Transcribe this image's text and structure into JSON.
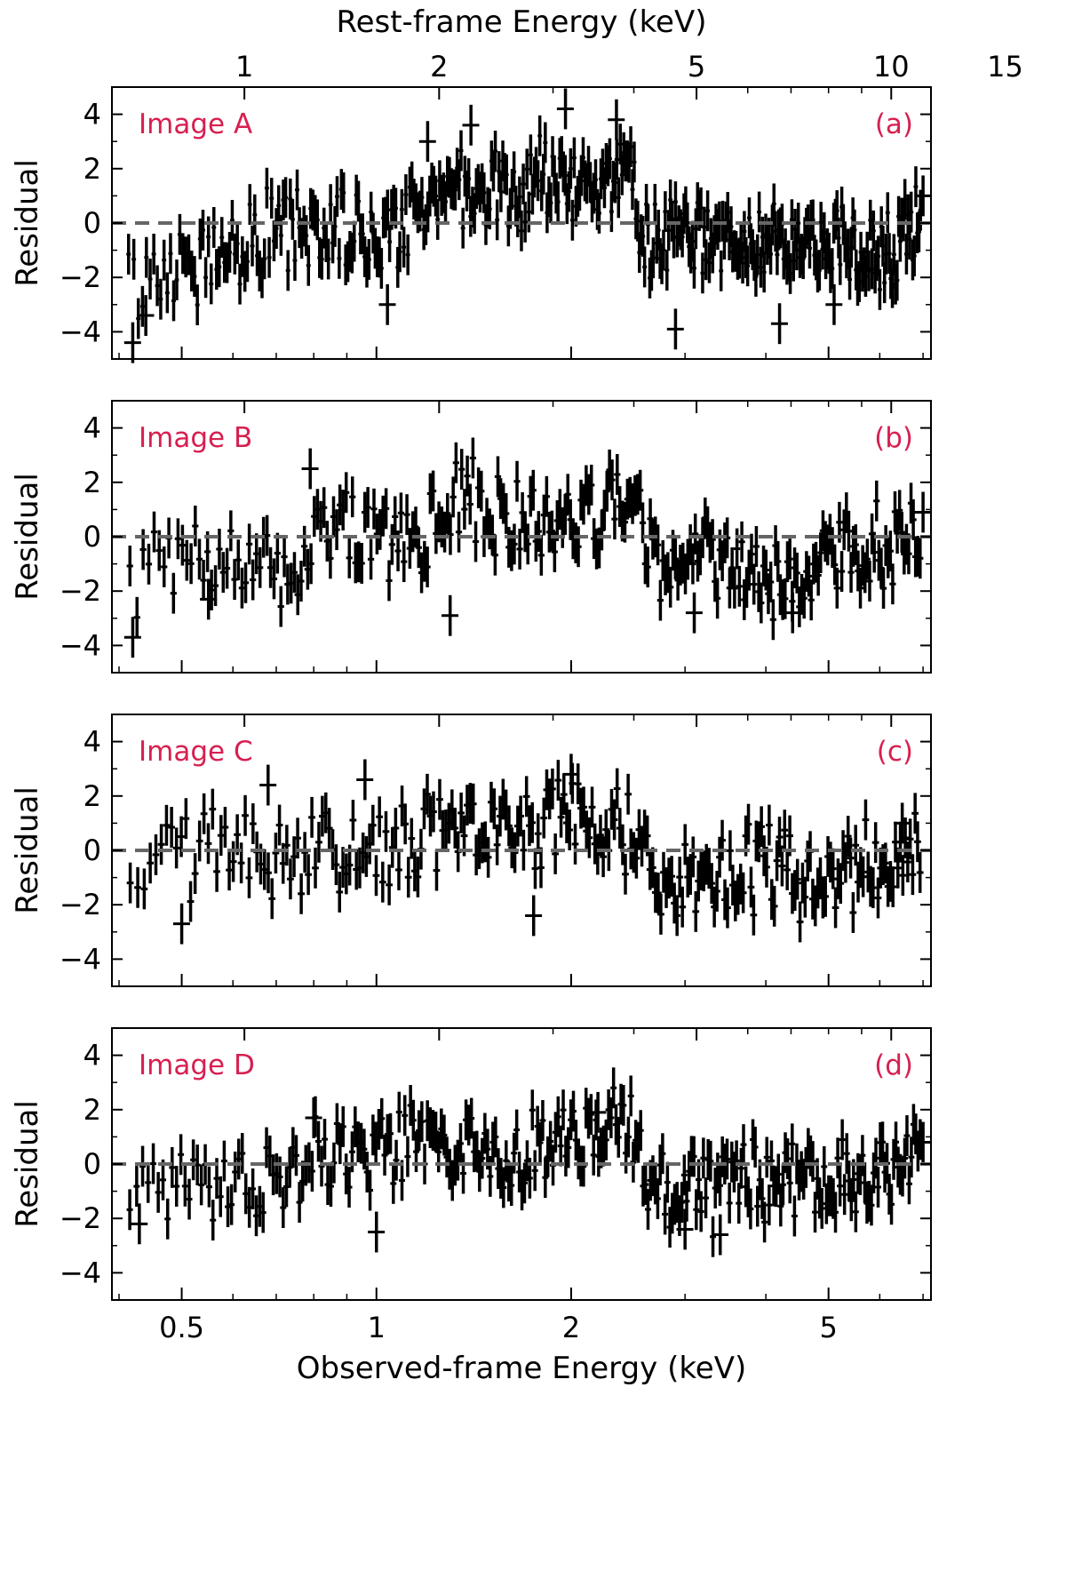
{
  "colors": {
    "data": "#000000",
    "zero_line": "#666666",
    "annotation": "#d62050"
  },
  "chart_data": [
    {
      "type": "scatter",
      "panel": "a",
      "image_label": "Image A",
      "letter_label": "(a)",
      "ylabel": "Residual",
      "xscale": "log",
      "xlim": [
        0.39,
        7.2
      ],
      "ylim": [
        -5,
        5
      ],
      "yticks": [
        4,
        2,
        0,
        -2,
        -4
      ],
      "top_axis": {
        "label": "Rest-frame Energy (keV)",
        "tick_labels": [
          "1",
          "2",
          "5",
          "10",
          "15"
        ]
      },
      "reference_line": 0,
      "error_bars": true,
      "approx_points": 410,
      "trend": {
        "x": [
          0.4,
          0.45,
          0.5,
          0.6,
          0.7,
          0.8,
          0.9,
          1.0,
          1.1,
          1.2,
          1.4,
          1.6,
          1.8,
          2.0,
          2.2,
          2.4,
          2.5,
          2.55,
          2.7,
          3.0,
          3.5,
          4.0,
          5.0,
          6.0,
          7.0
        ],
        "y": [
          -2.3,
          -2.1,
          -1.5,
          -0.9,
          -0.3,
          -0.4,
          -0.2,
          -0.6,
          0.3,
          0.9,
          1.4,
          1.0,
          1.5,
          1.3,
          1.5,
          1.7,
          1.6,
          0.2,
          -0.8,
          -0.6,
          -0.8,
          -1.0,
          -0.9,
          -1.1,
          -0.3
        ]
      },
      "highlights": [
        [
          0.42,
          -4.4
        ],
        [
          0.44,
          -3.4
        ],
        [
          1.04,
          -3.0
        ],
        [
          2.9,
          -3.9
        ],
        [
          4.2,
          -3.7
        ],
        [
          5.1,
          -3.0
        ],
        [
          1.2,
          3.0
        ],
        [
          1.4,
          3.6
        ],
        [
          1.96,
          4.2
        ],
        [
          2.35,
          3.8
        ],
        [
          7.0,
          1.0
        ]
      ]
    },
    {
      "type": "scatter",
      "panel": "b",
      "image_label": "Image B",
      "letter_label": "(b)",
      "ylabel": "Residual",
      "xscale": "log",
      "xlim": [
        0.39,
        7.2
      ],
      "ylim": [
        -5,
        5
      ],
      "yticks": [
        4,
        2,
        0,
        -2,
        -4
      ],
      "reference_line": 0,
      "error_bars": true,
      "approx_points": 280,
      "trend": {
        "x": [
          0.4,
          0.45,
          0.5,
          0.6,
          0.7,
          0.78,
          0.8,
          0.9,
          1.0,
          1.2,
          1.4,
          1.6,
          1.8,
          2.0,
          2.2,
          2.4,
          2.55,
          2.6,
          2.8,
          3.0,
          3.5,
          4.0,
          5.0,
          6.0,
          7.0
        ],
        "y": [
          -3.0,
          -0.8,
          -0.5,
          -0.7,
          -1.0,
          -1.2,
          1.6,
          0.2,
          -0.2,
          0.3,
          1.4,
          0.6,
          0.4,
          0.9,
          1.0,
          1.3,
          1.5,
          -0.5,
          -1.3,
          -1.2,
          -0.7,
          -1.6,
          -0.8,
          -0.4,
          0.3
        ]
      },
      "highlights": [
        [
          0.42,
          -3.7
        ],
        [
          0.79,
          2.5
        ],
        [
          3.1,
          -2.8
        ],
        [
          4.4,
          -2.8
        ],
        [
          0.55,
          -2.3
        ],
        [
          1.3,
          -2.9
        ],
        [
          7.0,
          0.9
        ]
      ]
    },
    {
      "type": "scatter",
      "panel": "c",
      "image_label": "Image C",
      "letter_label": "(c)",
      "ylabel": "Residual",
      "xscale": "log",
      "xlim": [
        0.39,
        7.2
      ],
      "ylim": [
        -5,
        5
      ],
      "yticks": [
        4,
        2,
        0,
        -2,
        -4
      ],
      "reference_line": 0,
      "error_bars": true,
      "approx_points": 260,
      "trend": {
        "x": [
          0.4,
          0.45,
          0.5,
          0.6,
          0.7,
          0.8,
          0.9,
          1.0,
          1.2,
          1.4,
          1.6,
          1.8,
          2.0,
          2.1,
          2.3,
          2.5,
          2.7,
          3.0,
          3.5,
          4.0,
          5.0,
          6.0,
          7.0
        ],
        "y": [
          -1.4,
          -0.9,
          -0.2,
          0.0,
          -0.2,
          0.0,
          0.1,
          -0.3,
          0.4,
          0.9,
          0.9,
          0.4,
          2.0,
          1.6,
          0.9,
          0.6,
          -0.7,
          -0.9,
          -0.8,
          -0.7,
          -1.1,
          -0.4,
          0.3
        ]
      },
      "highlights": [
        [
          0.5,
          -2.7
        ],
        [
          0.68,
          2.4
        ],
        [
          0.96,
          2.6
        ],
        [
          1.75,
          -2.4
        ],
        [
          2.0,
          2.8
        ],
        [
          6.5,
          1.0
        ]
      ]
    },
    {
      "type": "scatter",
      "panel": "d",
      "image_label": "Image D",
      "letter_label": "(d)",
      "ylabel": "Residual",
      "xscale": "log",
      "xlim": [
        0.39,
        7.2
      ],
      "ylim": [
        -5,
        5
      ],
      "yticks": [
        4,
        2,
        0,
        -2,
        -4
      ],
      "xticks": [
        0.5,
        1,
        2,
        5
      ],
      "xtick_labels": [
        "0.5",
        "1",
        "2",
        "5"
      ],
      "xlabel": "Observed-frame Energy (keV)",
      "reference_line": 0,
      "error_bars": true,
      "approx_points": 290,
      "trend": {
        "x": [
          0.4,
          0.45,
          0.5,
          0.6,
          0.7,
          0.8,
          0.9,
          1.0,
          1.1,
          1.2,
          1.4,
          1.6,
          1.8,
          2.0,
          2.2,
          2.4,
          2.55,
          2.6,
          2.8,
          3.0,
          3.5,
          4.0,
          5.0,
          6.0,
          7.0
        ],
        "y": [
          -1.8,
          -1.2,
          -0.5,
          -0.9,
          -0.6,
          0.5,
          0.6,
          0.1,
          0.8,
          0.7,
          0.5,
          0.3,
          0.6,
          0.9,
          1.6,
          1.7,
          1.4,
          -1.2,
          -1.3,
          -1.0,
          -1.0,
          -0.7,
          -0.6,
          -0.4,
          0.6
        ]
      },
      "highlights": [
        [
          0.43,
          -2.2
        ],
        [
          1.0,
          -2.5
        ],
        [
          3.0,
          -2.4
        ],
        [
          3.4,
          -2.6
        ],
        [
          0.8,
          1.7
        ],
        [
          2.2,
          1.9
        ],
        [
          7.0,
          0.8
        ]
      ]
    }
  ]
}
